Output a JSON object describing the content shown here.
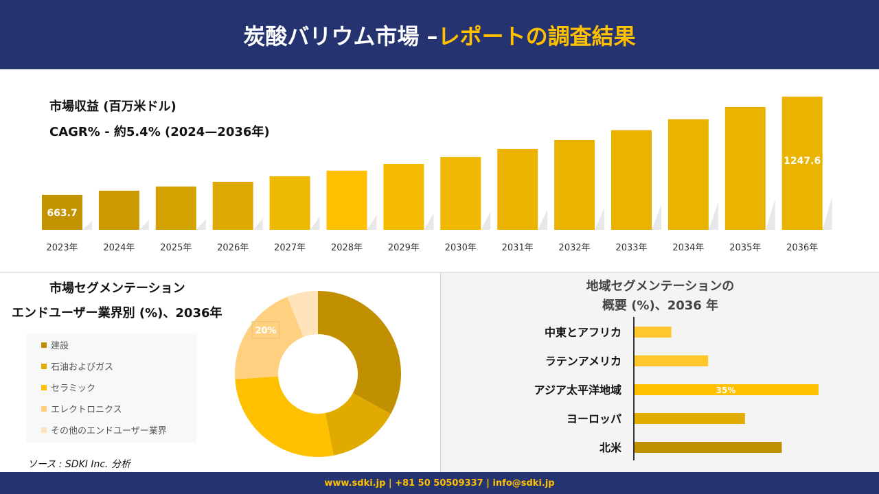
{
  "header": {
    "title_main": "炭酸バリウム市場 –",
    "title_accent": "レポートの調査結果"
  },
  "colors": {
    "navy": "#253370",
    "accent": "#ffc000"
  },
  "chart_data": [
    {
      "type": "bar",
      "title": "市場収益 (百万米ドル)",
      "subtitle": "CAGR% - 約5.4% (2024—2036年)",
      "categories": [
        "2023年",
        "2024年",
        "2025年",
        "2026年",
        "2027年",
        "2028年",
        "2029年",
        "2030年",
        "2031年",
        "2032年",
        "2033年",
        "2034年",
        "2035年",
        "2036年"
      ],
      "values": [
        663.7,
        688,
        713,
        741,
        774,
        807,
        847,
        888,
        937,
        990,
        1048,
        1113,
        1186,
        1247.6
      ],
      "data_labels": {
        "0": "663.7",
        "13": "1247.6"
      },
      "colors": [
        "#c49300",
        "#cc9a00",
        "#d4a200",
        "#dcaa00",
        "#ecb800",
        "#ffc000",
        "#f5bb00",
        "#f0b800",
        "#ecb400",
        "#eab300",
        "#eab300",
        "#eab300",
        "#eab300",
        "#eab300"
      ]
    },
    {
      "type": "pie",
      "title": "市場セグメンテーション",
      "subtitle": "エンドユーザー業界別 (%)、2036年",
      "labels": [
        "建設",
        "石油およびガス",
        "セラミック",
        "エレクトロニクス",
        "その他のエンドユーザー業界"
      ],
      "values": [
        33,
        14,
        27,
        20,
        6
      ],
      "colors": [
        "#c09000",
        "#e0aa00",
        "#ffc000",
        "#ffd080",
        "#ffe3bb"
      ],
      "data_labels": {
        "3": "20%"
      }
    },
    {
      "type": "bar",
      "orientation": "horizontal",
      "title": "地域セグメンテーションの",
      "subtitle": "概要 (%)、2036 年",
      "categories": [
        "中東とアフリカ",
        "ラテンアメリカ",
        "アジア太平洋地域",
        "ヨーロッパ",
        "北米"
      ],
      "values": [
        7,
        14,
        35,
        21,
        28
      ],
      "data_labels": {
        "2": "35%"
      },
      "colors": [
        "#ffc72c",
        "#ffc72c",
        "#ffc000",
        "#e2ab00",
        "#c09000"
      ]
    }
  ],
  "source": "ソース : SDKI Inc. 分析",
  "footer": "www.sdki.jp | +81 50 50509337 | info@sdki.jp"
}
